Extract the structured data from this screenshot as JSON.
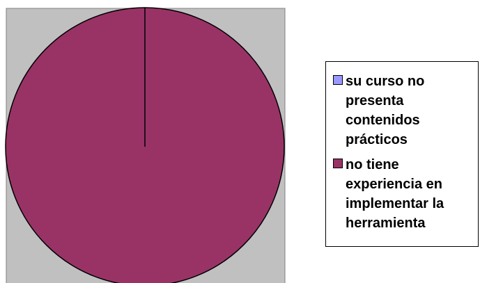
{
  "chart_data": {
    "type": "pie",
    "categories": [
      "su curso no presenta contenidos prácticos",
      "no tiene experiencia en implementar la herramienta"
    ],
    "values": [
      0,
      100
    ],
    "colors": [
      "#9999ff",
      "#993366"
    ],
    "legend": "right"
  }
}
